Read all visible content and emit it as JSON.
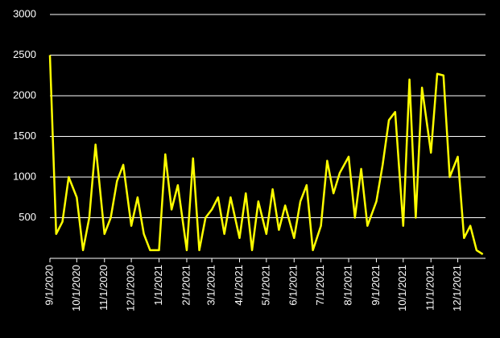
{
  "chart_data": {
    "type": "line",
    "x": [
      "9/1/2020",
      "9/8/2020",
      "9/15/2020",
      "9/22/2020",
      "10/1/2020",
      "10/8/2020",
      "10/15/2020",
      "10/22/2020",
      "11/1/2020",
      "11/8/2020",
      "11/15/2020",
      "11/22/2020",
      "12/1/2020",
      "12/8/2020",
      "12/15/2020",
      "12/22/2020",
      "1/1/2021",
      "1/8/2021",
      "1/15/2021",
      "1/22/2021",
      "2/1/2021",
      "2/8/2021",
      "2/15/2021",
      "2/22/2021",
      "3/1/2021",
      "3/8/2021",
      "3/15/2021",
      "3/22/2021",
      "4/1/2021",
      "4/8/2021",
      "4/15/2021",
      "4/22/2021",
      "5/1/2021",
      "5/8/2021",
      "5/15/2021",
      "5/22/2021",
      "6/1/2021",
      "6/8/2021",
      "6/15/2021",
      "6/22/2021",
      "7/1/2021",
      "7/8/2021",
      "7/15/2021",
      "7/22/2021",
      "8/1/2021",
      "8/8/2021",
      "8/15/2021",
      "8/22/2021",
      "9/1/2021",
      "9/8/2021",
      "9/15/2021",
      "9/22/2021",
      "10/1/2021",
      "10/8/2021",
      "10/15/2021",
      "10/22/2021",
      "11/1/2021",
      "11/8/2021",
      "11/15/2021",
      "11/22/2021",
      "12/1/2021",
      "12/8/2021",
      "12/15/2021",
      "12/22/2021",
      "12/29/2021"
    ],
    "series": [
      {
        "color": "#ffff00",
        "values": [
          2500,
          300,
          450,
          1000,
          750,
          100,
          500,
          1400,
          300,
          500,
          950,
          1150,
          400,
          750,
          300,
          100,
          100,
          1280,
          600,
          900,
          100,
          1230,
          100,
          500,
          600,
          750,
          300,
          750,
          250,
          800,
          100,
          700,
          300,
          850,
          350,
          650,
          250,
          700,
          900,
          100,
          400,
          1200,
          800,
          1050,
          1250,
          500,
          1100,
          400,
          700,
          1150,
          1700,
          1800,
          400,
          2200,
          500,
          2100,
          1300,
          2270,
          2250,
          1000,
          1250,
          250,
          400,
          100,
          50
        ]
      }
    ],
    "xlim": [
      "9/1/2020",
      "1/1/2022"
    ],
    "xticks": [
      "9/1/2020",
      "10/1/2020",
      "11/1/2020",
      "12/1/2020",
      "1/1/2021",
      "2/1/2021",
      "3/1/2021",
      "4/1/2021",
      "5/1/2021",
      "6/1/2021",
      "7/1/2021",
      "8/1/2021",
      "9/1/2021",
      "10/1/2021",
      "11/1/2021",
      "12/1/2021"
    ],
    "ylim": [
      0,
      3000
    ],
    "yticks": [
      500,
      1000,
      1500,
      2000,
      2500,
      3000
    ],
    "grid": true
  }
}
